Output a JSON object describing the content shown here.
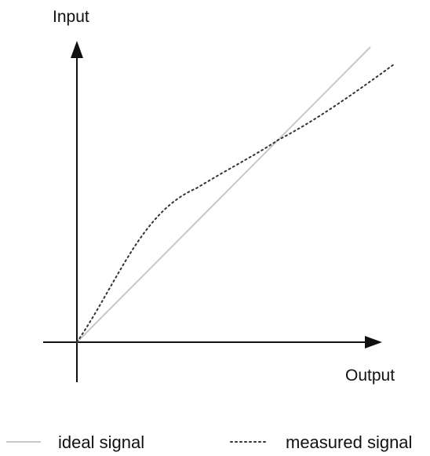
{
  "diagram": {
    "y_axis_label": "Input",
    "x_axis_label": "Output",
    "legend": {
      "ideal_label": "ideal signal",
      "measured_label": "measured signal"
    },
    "colors": {
      "axis": "#111111",
      "ideal_line": "#c8c8c8",
      "measured_line": "#333333",
      "text": "#111111"
    }
  }
}
